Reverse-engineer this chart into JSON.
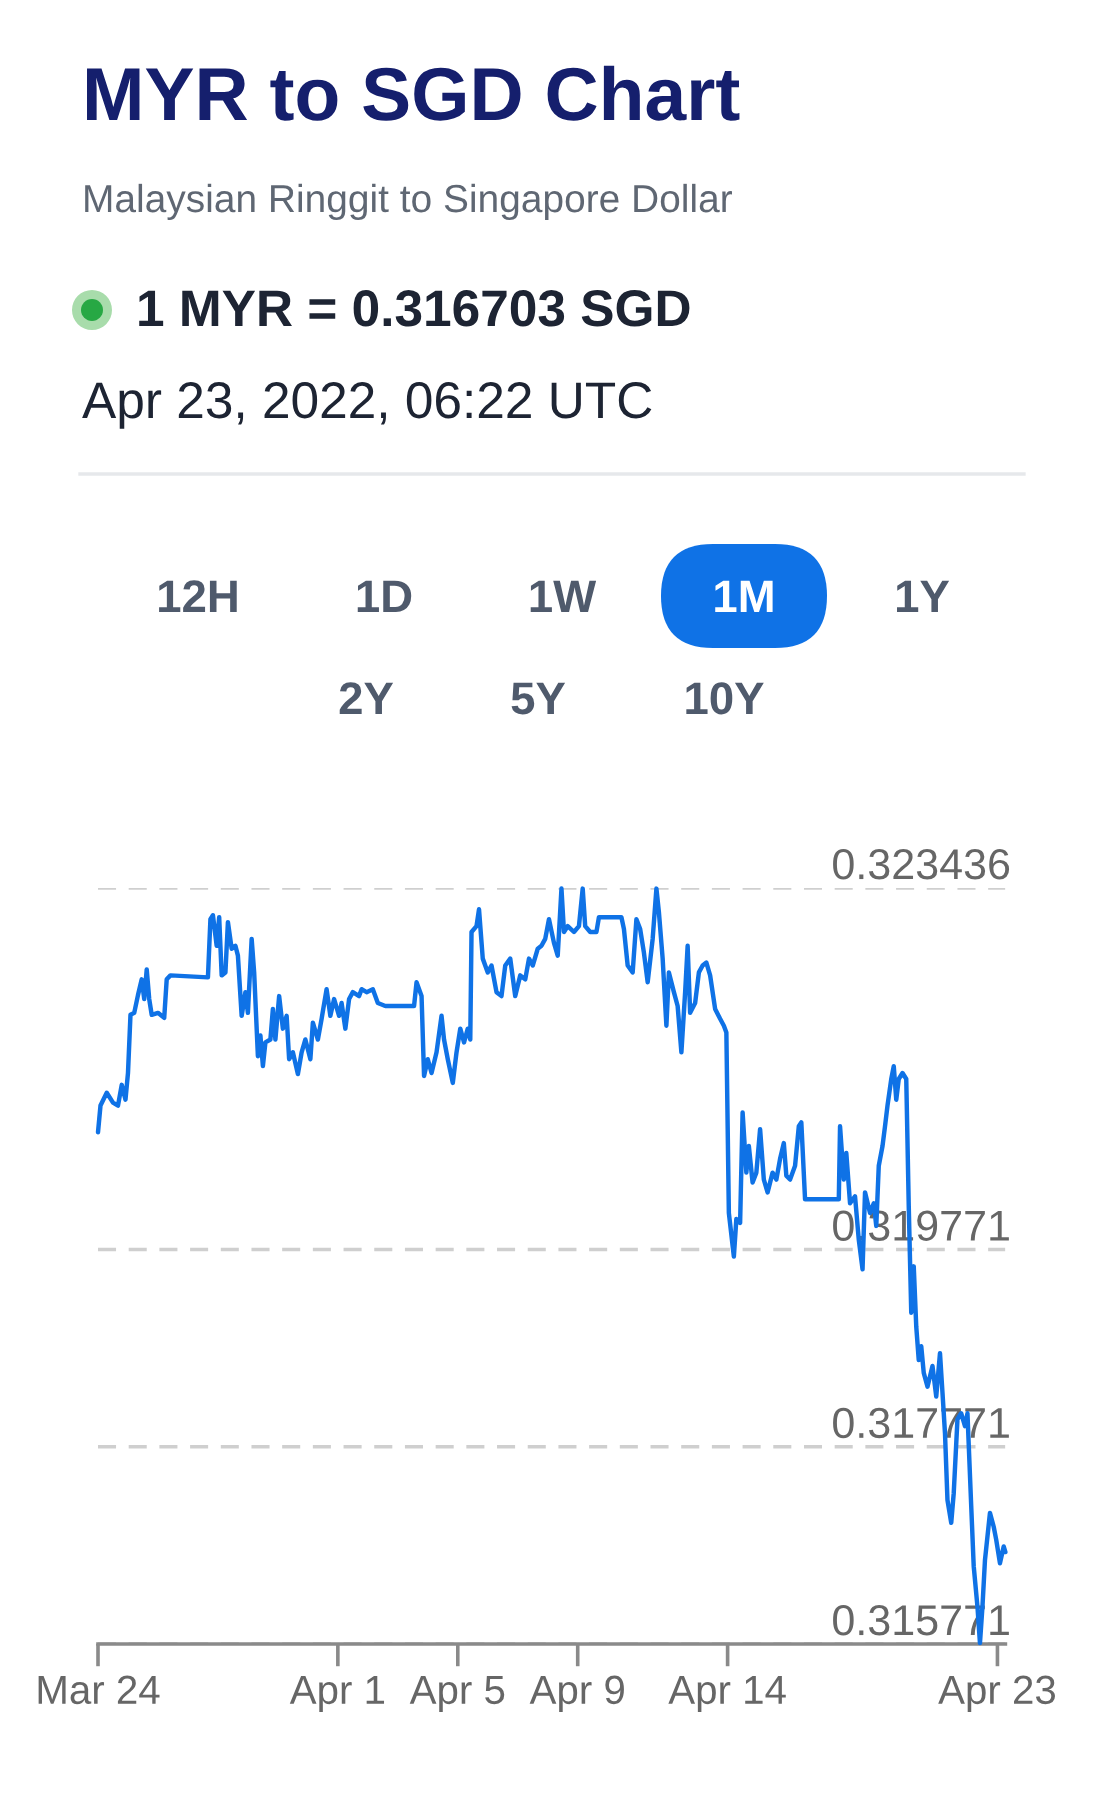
{
  "chart_data": {
    "type": "line",
    "title": "MYR to SGD Chart",
    "subtitle": "Malaysian Ringgit to Singapore Dollar",
    "annotations": [
      "1 MYR = 0.316703 SGD",
      "Apr 23, 2022, 06:22 UTC",
      "12H",
      "1D",
      "1W",
      "1M",
      "1Y",
      "2Y",
      "5Y",
      "10Y"
    ],
    "color": "#0f72e6",
    "grid": "y",
    "xlim": [
      "2022-03-24T00:00",
      "2022-04-23T06:22"
    ],
    "ylim": [
      0.315771,
      0.323436
    ],
    "xticks": [
      {
        "value": "2022-03-24",
        "label": "Mar 24"
      },
      {
        "value": "2022-04-01",
        "label": "Apr 1"
      },
      {
        "value": "2022-04-05",
        "label": "Apr 5"
      },
      {
        "value": "2022-04-09",
        "label": "Apr 9"
      },
      {
        "value": "2022-04-14",
        "label": "Apr 14"
      },
      {
        "value": "2022-04-23",
        "label": "Apr 23"
      }
    ],
    "yticks": [
      0.315771,
      0.317771,
      0.319771,
      0.323436
    ],
    "x": [
      "2022-03-24T00:00",
      "2022-03-24T02:00",
      "2022-03-24T07:00",
      "2022-03-24T12:00",
      "2022-03-24T16:00",
      "2022-03-24T19:00",
      "2022-03-24T22:00",
      "2022-03-25T00:00",
      "2022-03-25T02:00",
      "2022-03-25T05:00",
      "2022-03-25T08:00",
      "2022-03-25T11:00",
      "2022-03-25T13:00",
      "2022-03-25T15:00",
      "2022-03-25T17:00",
      "2022-03-25T19:00",
      "2022-03-26T00:00",
      "2022-03-26T05:00",
      "2022-03-26T07:00",
      "2022-03-26T10:00",
      "2022-03-27T16:00",
      "2022-03-27T18:00",
      "2022-03-27T20:00",
      "2022-03-27T23:00",
      "2022-03-28T01:00",
      "2022-03-28T03:00",
      "2022-03-28T06:00",
      "2022-03-28T08:00",
      "2022-03-28T11:00",
      "2022-03-28T14:00",
      "2022-03-28T16:00",
      "2022-03-28T19:00",
      "2022-03-28T22:00",
      "2022-03-29T00:00",
      "2022-03-29T03:00",
      "2022-03-29T05:00",
      "2022-03-29T08:00",
      "2022-03-29T10:00",
      "2022-03-29T12:00",
      "2022-03-29T14:00",
      "2022-03-29T18:00",
      "2022-03-29T20:00",
      "2022-03-29T22:00",
      "2022-03-30T01:00",
      "2022-03-30T04:00",
      "2022-03-30T07:00",
      "2022-03-30T09:00",
      "2022-03-30T12:00",
      "2022-03-30T16:00",
      "2022-03-30T19:00",
      "2022-03-30T22:00",
      "2022-03-31T02:00",
      "2022-03-31T04:00",
      "2022-03-31T08:00",
      "2022-03-31T11:00",
      "2022-03-31T15:00",
      "2022-03-31T18:00",
      "2022-03-31T21:00",
      "2022-04-01T01:00",
      "2022-04-01T03:00",
      "2022-04-01T06:00",
      "2022-04-01T09:00",
      "2022-04-01T12:00",
      "2022-04-01T17:00",
      "2022-04-01T19:00",
      "2022-04-01T23:00",
      "2022-04-02T04:00",
      "2022-04-02T08:00",
      "2022-04-02T14:00",
      "2022-04-03T13:00",
      "2022-04-03T15:00",
      "2022-04-03T19:00",
      "2022-04-03T21:00",
      "2022-04-04T00:00",
      "2022-04-04T03:00",
      "2022-04-04T07:00",
      "2022-04-04T11:00",
      "2022-04-04T13:00",
      "2022-04-04T16:00",
      "2022-04-04T20:00",
      "2022-04-04T23:00",
      "2022-04-05T02:00",
      "2022-04-05T05:00",
      "2022-04-05T08:00",
      "2022-04-05T10:00",
      "2022-04-05T11:00",
      "2022-04-05T15:00",
      "2022-04-05T17:00",
      "2022-04-05T20:00",
      "2022-04-06T00:00",
      "2022-04-06T03:00",
      "2022-04-06T07:00",
      "2022-04-06T11:00",
      "2022-04-06T14:00",
      "2022-04-06T18:00",
      "2022-04-06T22:00",
      "2022-04-07T02:00",
      "2022-04-07T06:00",
      "2022-04-07T09:00",
      "2022-04-07T12:00",
      "2022-04-07T16:00",
      "2022-04-07T19:00",
      "2022-04-07T22:00",
      "2022-04-08T01:00",
      "2022-04-08T05:00",
      "2022-04-08T08:00",
      "2022-04-08T11:00",
      "2022-04-08T13:00",
      "2022-04-08T16:00",
      "2022-04-08T21:00",
      "2022-04-09T01:00",
      "2022-04-09T04:00",
      "2022-04-09T06:00",
      "2022-04-09T10:00",
      "2022-04-09T15:00",
      "2022-04-09T17:00",
      "2022-04-10T11:00",
      "2022-04-10T13:00",
      "2022-04-10T16:00",
      "2022-04-10T20:00",
      "2022-04-10T23:00",
      "2022-04-11T02:00",
      "2022-04-11T05:00",
      "2022-04-11T08:00",
      "2022-04-11T12:00",
      "2022-04-11T15:00",
      "2022-04-11T17:00",
      "2022-04-11T20:00",
      "2022-04-11T23:00",
      "2022-04-12T01:00",
      "2022-04-12T05:00",
      "2022-04-12T08:00",
      "2022-04-12T11:00",
      "2022-04-12T14:00",
      "2022-04-12T16:00",
      "2022-04-12T18:00",
      "2022-04-12T22:00",
      "2022-04-13T01:00",
      "2022-04-13T04:00",
      "2022-04-13T07:00",
      "2022-04-13T10:00",
      "2022-04-13T14:00",
      "2022-04-13T18:00",
      "2022-04-13T21:00",
      "2022-04-13T23:00",
      "2022-04-14T01:00",
      "2022-04-14T05:00",
      "2022-04-14T07:00",
      "2022-04-14T10:00",
      "2022-04-14T12:00",
      "2022-04-14T15:00",
      "2022-04-14T17:00",
      "2022-04-14T20:00",
      "2022-04-14T23:00",
      "2022-04-15T02:00",
      "2022-04-15T05:00",
      "2022-04-15T08:00",
      "2022-04-15T12:00",
      "2022-04-15T15:00",
      "2022-04-15T18:00",
      "2022-04-15T21:00",
      "2022-04-15T23:00",
      "2022-04-16T02:00",
      "2022-04-16T06:00",
      "2022-04-16T09:00",
      "2022-04-16T11:00",
      "2022-04-16T14:00",
      "2022-04-17T17:00",
      "2022-04-17T18:00",
      "2022-04-17T21:00",
      "2022-04-17T23:00",
      "2022-04-18T02:00",
      "2022-04-18T06:00",
      "2022-04-18T09:00",
      "2022-04-18T12:00",
      "2022-04-18T14:00",
      "2022-04-18T18:00",
      "2022-04-18T21:00",
      "2022-04-18T23:00",
      "2022-04-19T01:00",
      "2022-04-19T04:00",
      "2022-04-19T06:00",
      "2022-04-19T08:00",
      "2022-04-19T11:00",
      "2022-04-19T13:00",
      "2022-04-19T15:00",
      "2022-04-19T17:00",
      "2022-04-19T20:00",
      "2022-04-19T23:00",
      "2022-04-20T01:00",
      "2022-04-20T03:00",
      "2022-04-20T05:00",
      "2022-04-20T07:00",
      "2022-04-20T09:00",
      "2022-04-20T11:00",
      "2022-04-20T13:00",
      "2022-04-20T16:00",
      "2022-04-20T20:00",
      "2022-04-20T23:00",
      "2022-04-21T02:00",
      "2022-04-21T04:00",
      "2022-04-21T06:00",
      "2022-04-21T08:00",
      "2022-04-21T11:00",
      "2022-04-21T13:00",
      "2022-04-21T16:00",
      "2022-04-21T19:00",
      "2022-04-21T22:00",
      "2022-04-22T00:00",
      "2022-04-22T03:00",
      "2022-04-22T05:00",
      "2022-04-22T08:00",
      "2022-04-22T10:00",
      "2022-04-22T12:00",
      "2022-04-22T14:00",
      "2022-04-22T18:00",
      "2022-04-22T21:00",
      "2022-04-22T23:00",
      "2022-04-23T02:00",
      "2022-04-23T05:00",
      "2022-04-23T06:22"
    ],
    "values": [
      0.32096,
      0.32123,
      0.32136,
      0.32126,
      0.32123,
      0.32144,
      0.32129,
      0.32156,
      0.32215,
      0.32217,
      0.32235,
      0.32251,
      0.32231,
      0.32261,
      0.32231,
      0.32215,
      0.32217,
      0.32212,
      0.32251,
      0.32255,
      0.32253,
      0.32312,
      0.32316,
      0.32285,
      0.32314,
      0.32255,
      0.32258,
      0.32309,
      0.32282,
      0.32285,
      0.32275,
      0.32214,
      0.32238,
      0.32217,
      0.32292,
      0.32258,
      0.32173,
      0.32194,
      0.32163,
      0.32187,
      0.3219,
      0.32221,
      0.3219,
      0.32234,
      0.32201,
      0.32214,
      0.3217,
      0.32177,
      0.32155,
      0.32177,
      0.3219,
      0.3217,
      0.32207,
      0.3219,
      0.32211,
      0.32241,
      0.32214,
      0.32231,
      0.32214,
      0.32227,
      0.32201,
      0.32231,
      0.32238,
      0.32234,
      0.32241,
      0.32238,
      0.32241,
      0.32227,
      0.32224,
      0.32224,
      0.32248,
      0.32234,
      0.32153,
      0.3217,
      0.32156,
      0.32177,
      0.32214,
      0.3219,
      0.3217,
      0.32146,
      0.32177,
      0.32201,
      0.32187,
      0.32201,
      0.3219,
      0.32299,
      0.32305,
      0.32322,
      0.32272,
      0.32258,
      0.32265,
      0.32238,
      0.32234,
      0.32265,
      0.32272,
      0.32234,
      0.32255,
      0.32251,
      0.32272,
      0.32265,
      0.32282,
      0.32285,
      0.32292,
      0.32312,
      0.32288,
      0.32275,
      0.32343,
      0.32299,
      0.32305,
      0.32299,
      0.32305,
      0.32343,
      0.32305,
      0.32299,
      0.32299,
      0.32314,
      0.32314,
      0.32302,
      0.32265,
      0.32258,
      0.32312,
      0.32302,
      0.32278,
      0.32248,
      0.32292,
      0.32343,
      0.32319,
      0.32272,
      0.32204,
      0.32258,
      0.32238,
      0.32224,
      0.32177,
      0.32238,
      0.32285,
      0.32217,
      0.32227,
      0.32258,
      0.32265,
      0.32268,
      0.32255,
      0.32221,
      0.32211,
      0.32204,
      0.32197,
      0.32014,
      0.3197,
      0.32008,
      0.32004,
      0.32116,
      0.32055,
      0.32082,
      0.32045,
      0.32055,
      0.32099,
      0.32048,
      0.32035,
      0.32055,
      0.32048,
      0.32069,
      0.32085,
      0.32052,
      0.32048,
      0.32062,
      0.32102,
      0.32106,
      0.32028,
      0.32028,
      0.32102,
      0.32048,
      0.32075,
      0.32024,
      0.32031,
      0.31987,
      0.31957,
      0.32035,
      0.32014,
      0.32024,
      0.32001,
      0.32062,
      0.32082,
      0.32102,
      0.32123,
      0.3215,
      0.32163,
      0.32129,
      0.3215,
      0.32156,
      0.3215,
      0.32021,
      0.31913,
      0.3196,
      0.31899,
      0.31865,
      0.31879,
      0.31852,
      0.31838,
      0.31859,
      0.31828,
      0.31872,
      0.31832,
      0.31791,
      0.31723,
      0.317,
      0.3173,
      0.31805,
      0.31811,
      0.31798,
      0.31811,
      0.31717,
      0.31656,
      0.31615,
      0.31578,
      0.31615,
      0.31662,
      0.3171,
      0.31696,
      0.31683,
      0.31659,
      0.31676,
      0.316703
    ]
  }
}
